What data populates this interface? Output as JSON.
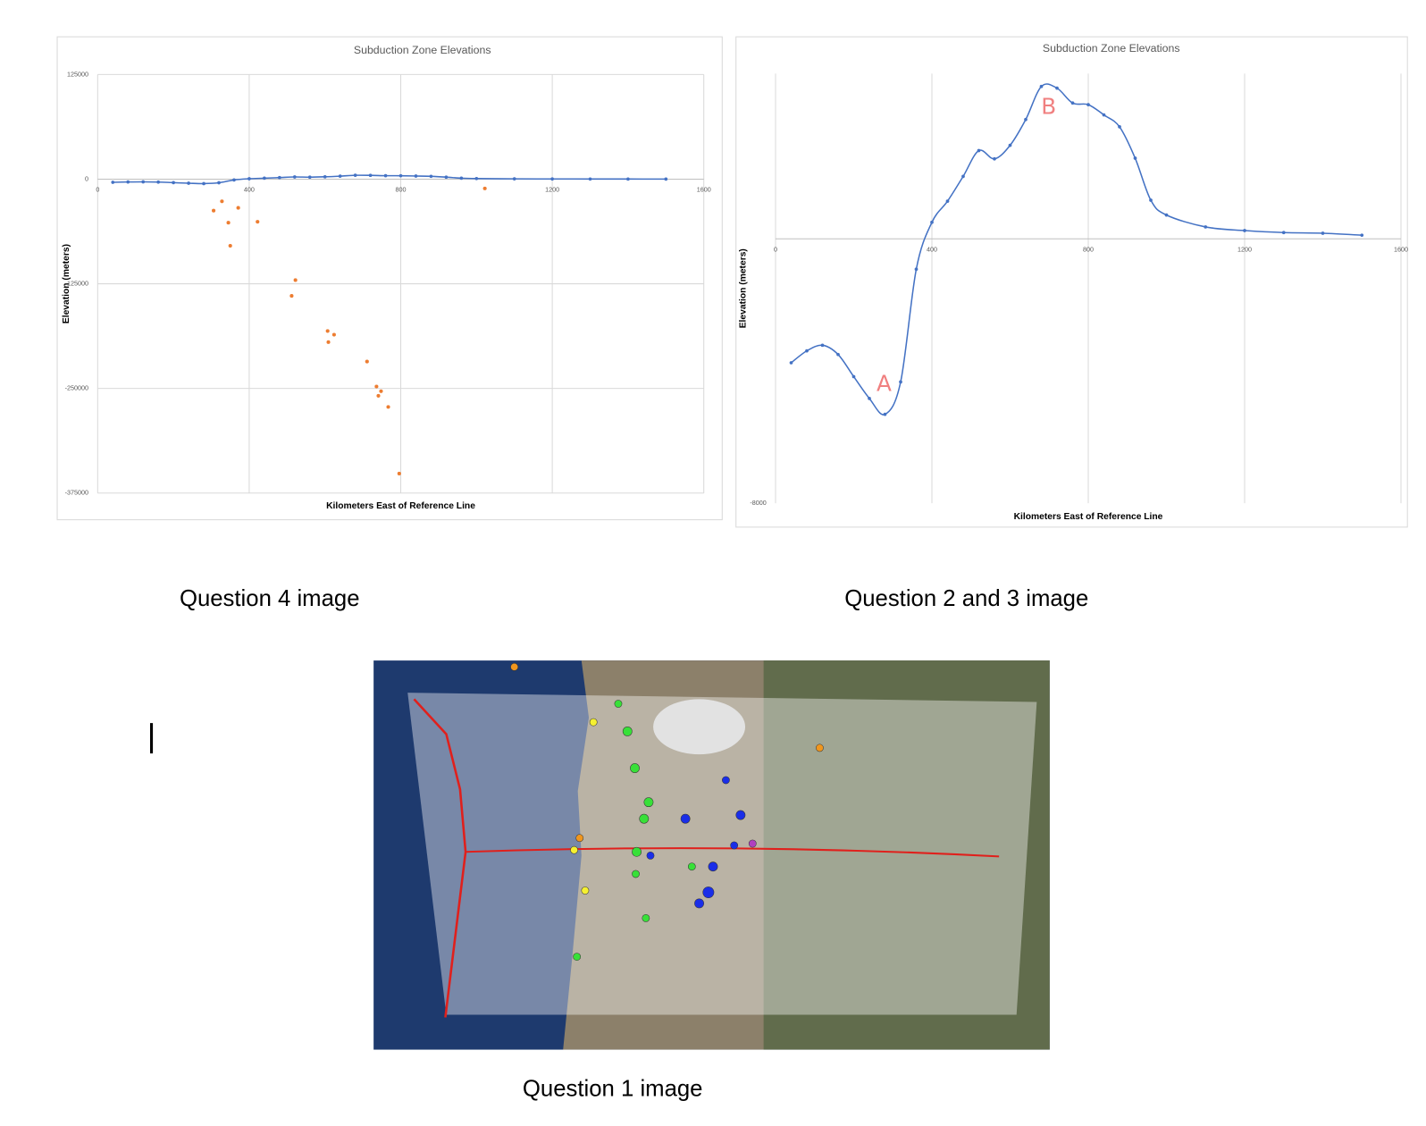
{
  "chart_data": [
    {
      "type": "line",
      "title": "Subduction Zone Elevations",
      "x_label": "Kilometers East of Reference Line",
      "y_label": "Elevation (meters)",
      "xlim": [
        0,
        1600
      ],
      "xticks": [
        0,
        400,
        800,
        1200,
        1600
      ],
      "ylim": [
        -375000,
        125000
      ],
      "yticks": [
        -375000,
        -250000,
        -125000,
        0,
        125000
      ],
      "grid": "both",
      "series": [
        {
          "type": "line",
          "color": "#4472c4",
          "x": [
            40,
            80,
            120,
            160,
            200,
            240,
            280,
            320,
            360,
            400,
            440,
            480,
            520,
            560,
            600,
            640,
            680,
            720,
            760,
            800,
            840,
            880,
            920,
            960,
            1000,
            1100,
            1200,
            1300,
            1400,
            1500
          ],
          "values": [
            -3750,
            -3390,
            -3220,
            -3500,
            -4170,
            -4830,
            -5310,
            -4330,
            -920,
            500,
            1140,
            1890,
            2670,
            2420,
            2830,
            3610,
            4610,
            4560,
            4110,
            4060,
            3750,
            3390,
            2440,
            1170,
            720,
            360,
            250,
            190,
            170,
            110
          ]
        },
        {
          "type": "scatter",
          "color": "#ed7d31",
          "x": [
            306,
            328,
            345,
            371,
            350,
            422,
            522,
            512,
            607,
            624,
            609,
            711,
            736,
            748,
            741,
            767,
            796,
            1022
          ],
          "values": [
            -37600,
            -26500,
            -52000,
            -34300,
            -79600,
            -50900,
            -120600,
            -139400,
            -181400,
            -185800,
            -194700,
            -217900,
            -247700,
            -253300,
            -258800,
            -272100,
            -351700,
            -11100
          ]
        }
      ]
    },
    {
      "type": "line",
      "title": "Subduction Zone Elevations",
      "x_label": "Kilometers East of Reference Line",
      "y_label": "Elevation (meters)",
      "xlim": [
        0,
        1600
      ],
      "xticks": [
        0,
        400,
        800,
        1200,
        1600
      ],
      "ylim": [
        -8000,
        5000
      ],
      "yticks": [
        -8000
      ],
      "grid": "x",
      "annotations": [
        "A",
        "B"
      ],
      "series": [
        {
          "type": "line",
          "color": "#4472c4",
          "x": [
            40,
            80,
            120,
            160,
            200,
            240,
            280,
            320,
            360,
            400,
            440,
            480,
            520,
            560,
            600,
            640,
            680,
            720,
            760,
            800,
            840,
            880,
            920,
            960,
            1000,
            1100,
            1200,
            1300,
            1400,
            1500
          ],
          "values": [
            -3750,
            -3390,
            -3220,
            -3500,
            -4170,
            -4830,
            -5310,
            -4330,
            -920,
            500,
            1140,
            1890,
            2670,
            2420,
            2830,
            3610,
            4610,
            4560,
            4110,
            4060,
            3750,
            3390,
            2440,
            1170,
            720,
            360,
            250,
            190,
            170,
            110
          ]
        }
      ]
    }
  ],
  "captions": [
    "Question 4 image",
    "Question 2 and 3 image",
    "Question 1 image"
  ]
}
